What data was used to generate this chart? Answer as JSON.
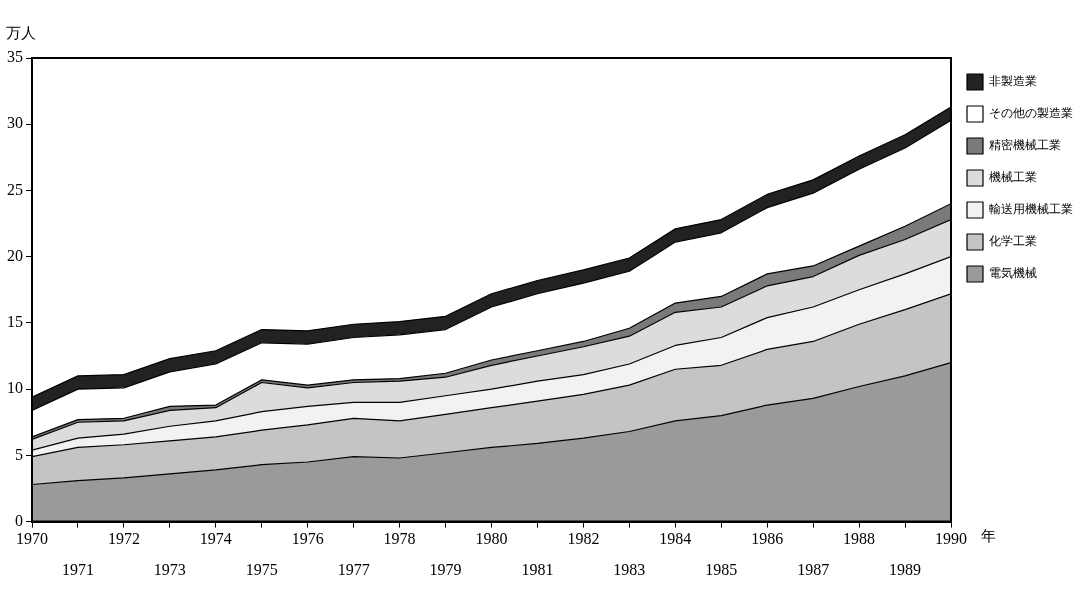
{
  "chart_data": {
    "type": "area",
    "stacked": true,
    "ylabel": "万人",
    "xlabel": "年",
    "x": [
      1970,
      1971,
      1972,
      1973,
      1974,
      1975,
      1976,
      1977,
      1978,
      1979,
      1980,
      1981,
      1982,
      1983,
      1984,
      1985,
      1986,
      1987,
      1988,
      1989,
      1990
    ],
    "xlim": [
      1970,
      1990
    ],
    "xticks": [
      1970,
      {
        "value": 1971,
        "label": null
      },
      1972,
      {
        "value": 1973,
        "label": null
      },
      1974,
      {
        "value": 1975,
        "label": null
      },
      1976,
      {
        "value": 1977,
        "label": null
      },
      1978,
      {
        "value": 1979,
        "label": null
      },
      1980,
      {
        "value": 1981,
        "label": null
      },
      1982,
      {
        "value": 1983,
        "label": null
      },
      1984,
      {
        "value": 1985,
        "label": null
      },
      1986,
      {
        "value": 1987,
        "label": null
      },
      1988,
      {
        "value": 1989,
        "label": null
      },
      1990
    ],
    "x2lim": [
      1970,
      1990
    ],
    "x2ticks": [
      1971,
      1973,
      1975,
      1977,
      1979,
      1981,
      1983,
      1985,
      1987,
      1989
    ],
    "ylim": [
      0,
      35
    ],
    "yticks": [
      0,
      5,
      10,
      15,
      20,
      25,
      30,
      35
    ],
    "grid": false,
    "legend": "right",
    "series": [
      {
        "name": "電気機械",
        "color": "#9a9a9a",
        "values": [
          2.8,
          3.1,
          3.3,
          3.6,
          3.9,
          4.3,
          4.5,
          4.9,
          4.8,
          5.2,
          5.6,
          5.9,
          6.3,
          6.8,
          7.6,
          8.0,
          8.8,
          9.3,
          10.2,
          11.0,
          12.0
        ]
      },
      {
        "name": "化学工業",
        "color": "#c4c4c4",
        "values": [
          2.1,
          2.5,
          2.5,
          2.5,
          2.5,
          2.6,
          2.8,
          2.9,
          2.8,
          2.9,
          3.0,
          3.2,
          3.3,
          3.5,
          3.9,
          3.8,
          4.2,
          4.3,
          4.7,
          5.0,
          5.2
        ]
      },
      {
        "name": "輸送用機械工業",
        "color": "#f2f2f2",
        "values": [
          0.5,
          0.7,
          0.8,
          1.1,
          1.2,
          1.4,
          1.4,
          1.2,
          1.4,
          1.4,
          1.4,
          1.5,
          1.5,
          1.6,
          1.8,
          2.1,
          2.4,
          2.6,
          2.6,
          2.7,
          2.8
        ]
      },
      {
        "name": "機械工業",
        "color": "#dcdcdc",
        "values": [
          0.8,
          1.2,
          1.0,
          1.2,
          1.0,
          2.2,
          1.4,
          1.5,
          1.6,
          1.4,
          1.8,
          1.9,
          2.1,
          2.1,
          2.5,
          2.3,
          2.4,
          2.3,
          2.6,
          2.6,
          2.8
        ]
      },
      {
        "name": "精密機械工業",
        "color": "#7a7a7a",
        "values": [
          0.2,
          0.2,
          0.2,
          0.3,
          0.2,
          0.2,
          0.2,
          0.2,
          0.2,
          0.3,
          0.4,
          0.4,
          0.4,
          0.6,
          0.7,
          0.8,
          0.9,
          0.8,
          0.7,
          1.0,
          1.2
        ]
      },
      {
        "name": "その他の製造業",
        "color": "#ffffff",
        "values": [
          2.0,
          2.3,
          2.3,
          2.6,
          3.1,
          2.8,
          3.1,
          3.2,
          3.3,
          3.3,
          4.0,
          4.3,
          4.4,
          4.3,
          4.6,
          4.8,
          5.0,
          5.5,
          5.8,
          5.9,
          6.3
        ]
      },
      {
        "name": "非製造業",
        "color": "#222222",
        "values": [
          1.0,
          1.0,
          1.0,
          1.0,
          1.0,
          1.0,
          1.0,
          1.0,
          1.0,
          1.0,
          1.0,
          1.0,
          1.0,
          1.0,
          1.0,
          1.0,
          1.0,
          1.0,
          1.0,
          1.0,
          1.0
        ]
      }
    ]
  }
}
